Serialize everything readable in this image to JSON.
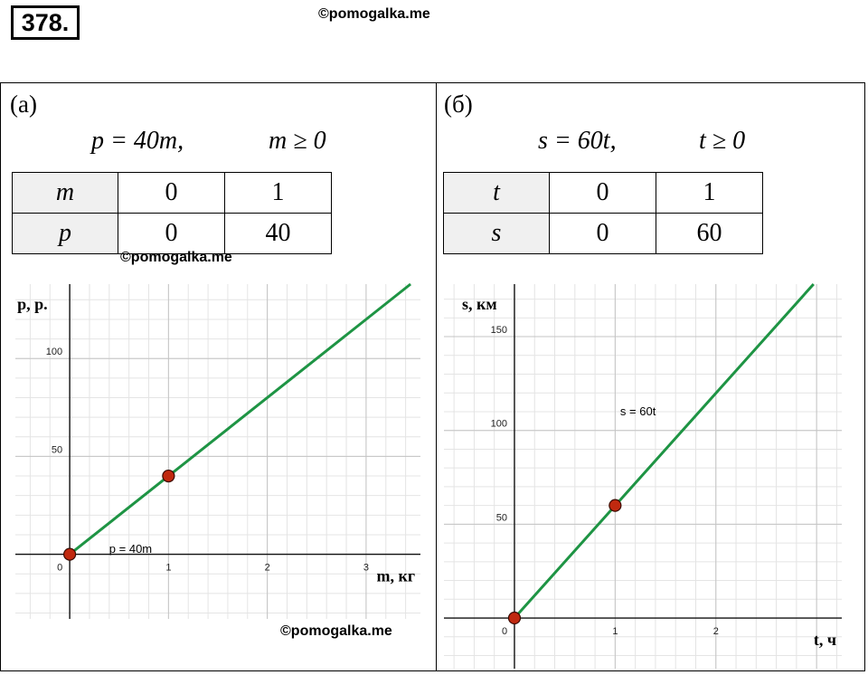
{
  "problem_number": "378.",
  "watermark": "©pomogalka.me",
  "panels": [
    {
      "label": "(а)",
      "formula_left": "p = 40m,",
      "formula_right": "m ≥ 0",
      "table": {
        "rows": [
          {
            "head": "m",
            "cells": [
              "0",
              "1"
            ]
          },
          {
            "head": "p",
            "cells": [
              "0",
              "40"
            ]
          }
        ]
      }
    },
    {
      "label": "(б)",
      "formula_left": "s = 60t,",
      "formula_right": "t ≥ 0",
      "table": {
        "rows": [
          {
            "head": "t",
            "cells": [
              "0",
              "1"
            ]
          },
          {
            "head": "s",
            "cells": [
              "0",
              "60"
            ]
          }
        ]
      }
    }
  ],
  "chart_data": [
    {
      "type": "line",
      "xlabel": "m, кг",
      "ylabel": "p, р.",
      "xlim": [
        -0.55,
        3.55
      ],
      "ylim": [
        -33,
        138
      ],
      "x_ticks": [
        0,
        1,
        2,
        3
      ],
      "y_ticks": [
        50,
        100
      ],
      "tick_labels_x": [
        "0",
        "1",
        "2",
        "3"
      ],
      "tick_labels_y": [
        "50",
        "100"
      ],
      "grid": true,
      "line_color": "#1e9444",
      "point_color": "#c0290f",
      "annotation": "p = 40m",
      "annotation_at": [
        0.4,
        0.84
      ],
      "series": [
        {
          "x": [
            0,
            3.45
          ],
          "y": [
            0,
            138
          ]
        }
      ],
      "points": [
        {
          "x": 0,
          "y": 0
        },
        {
          "x": 1,
          "y": 40
        }
      ]
    },
    {
      "type": "line",
      "xlabel": "t, ч",
      "ylabel": "s, км",
      "xlim": [
        -0.7,
        3.25
      ],
      "ylim": [
        -27,
        178
      ],
      "x_ticks": [
        0,
        1,
        2
      ],
      "y_ticks": [
        50,
        100,
        150
      ],
      "tick_labels_x": [
        "0",
        "1",
        "2"
      ],
      "tick_labels_y": [
        "50",
        "100",
        "150"
      ],
      "grid": true,
      "line_color": "#1e9444",
      "point_color": "#c0290f",
      "annotation": "s = 60t",
      "annotation_at": [
        1.05,
        108
      ],
      "series": [
        {
          "x": [
            0,
            2.97
          ],
          "y": [
            0,
            178
          ]
        }
      ],
      "points": [
        {
          "x": 0,
          "y": 0
        },
        {
          "x": 1,
          "y": 60
        }
      ]
    }
  ]
}
